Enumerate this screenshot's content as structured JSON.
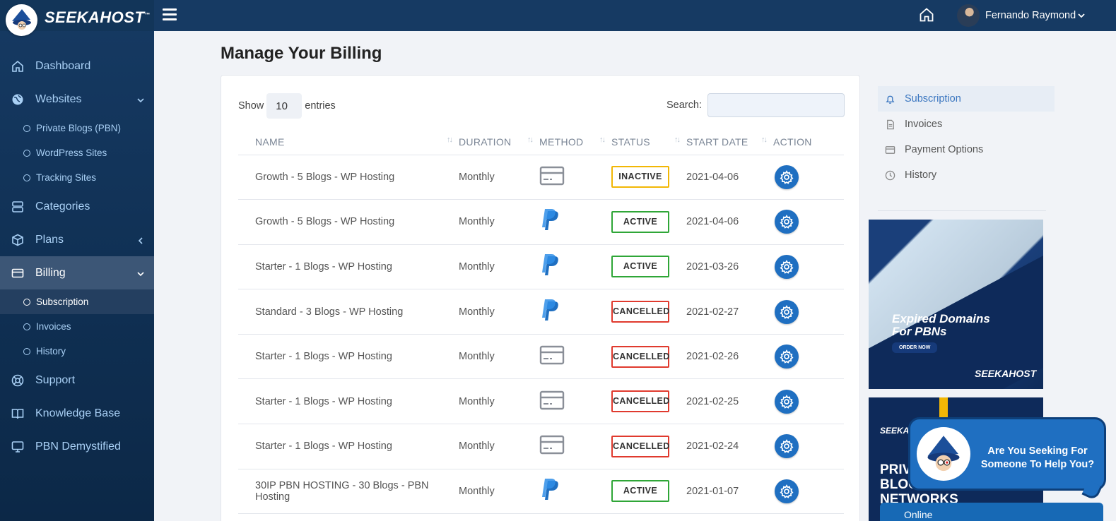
{
  "brand": {
    "name": "SEEKAHOST",
    "tm": "™"
  },
  "sidebar": {
    "items": [
      {
        "label": "Dashboard",
        "icon": "home-icon"
      },
      {
        "label": "Websites",
        "icon": "globe-icon",
        "expanded": true,
        "sub": [
          {
            "label": "Private Blogs (PBN)"
          },
          {
            "label": "WordPress Sites"
          },
          {
            "label": "Tracking Sites"
          }
        ]
      },
      {
        "label": "Categories",
        "icon": "server-icon"
      },
      {
        "label": "Plans",
        "icon": "package-icon"
      },
      {
        "label": "Billing",
        "icon": "credit-card-icon",
        "expanded": true,
        "sub": [
          {
            "label": "Subscription",
            "active": true
          },
          {
            "label": "Invoices"
          },
          {
            "label": "History"
          }
        ]
      },
      {
        "label": "Support",
        "icon": "lifebuoy-icon"
      },
      {
        "label": "Knowledge Base",
        "icon": "book-icon"
      },
      {
        "label": "PBN Demystified",
        "icon": "monitor-icon"
      }
    ]
  },
  "header": {
    "user_name": "Fernando Raymond"
  },
  "page": {
    "title": "Manage Your Billing"
  },
  "table_controls": {
    "show_label": "Show",
    "entries_value": "10",
    "entries_label": "entries",
    "search_label": "Search:",
    "search_value": ""
  },
  "table": {
    "columns": [
      "NAME",
      "DURATION",
      "METHOD",
      "STATUS",
      "START DATE",
      "ACTION"
    ],
    "rows": [
      {
        "name": "Growth - 5 Blogs - WP Hosting",
        "duration": "Monthly",
        "method": "card",
        "status": "INACTIVE",
        "start": "2021-04-06"
      },
      {
        "name": "Growth - 5 Blogs - WP Hosting",
        "duration": "Monthly",
        "method": "paypal",
        "status": "ACTIVE",
        "start": "2021-04-06"
      },
      {
        "name": "Starter - 1 Blogs - WP Hosting",
        "duration": "Monthly",
        "method": "paypal",
        "status": "ACTIVE",
        "start": "2021-03-26"
      },
      {
        "name": "Standard - 3 Blogs - WP Hosting",
        "duration": "Monthly",
        "method": "paypal",
        "status": "CANCELLED",
        "start": "2021-02-27"
      },
      {
        "name": "Starter - 1 Blogs - WP Hosting",
        "duration": "Monthly",
        "method": "card",
        "status": "CANCELLED",
        "start": "2021-02-26"
      },
      {
        "name": "Starter - 1 Blogs - WP Hosting",
        "duration": "Monthly",
        "method": "card",
        "status": "CANCELLED",
        "start": "2021-02-25"
      },
      {
        "name": "Starter - 1 Blogs - WP Hosting",
        "duration": "Monthly",
        "method": "card",
        "status": "CANCELLED",
        "start": "2021-02-24"
      },
      {
        "name": "30IP PBN HOSTING - 30 Blogs - PBN Hosting",
        "duration": "Monthly",
        "method": "paypal",
        "status": "ACTIVE",
        "start": "2021-01-07"
      }
    ]
  },
  "right_nav": [
    {
      "label": "Subscription",
      "icon": "bell-icon",
      "active": true
    },
    {
      "label": "Invoices",
      "icon": "document-icon"
    },
    {
      "label": "Payment Options",
      "icon": "credit-card-icon"
    },
    {
      "label": "History",
      "icon": "clock-icon"
    }
  ],
  "ads": {
    "ad1": {
      "headline_1": "Expired Domains",
      "headline_2": "For PBNs",
      "cta": "ORDER NOW",
      "brand": "SEEKAHOST"
    },
    "ad2": {
      "brand": "SEEKAHOST",
      "line1": "PRIV",
      "line2": "BLOG",
      "line3": "NETWORKS"
    }
  },
  "chat": {
    "line1": "Are You Seeking For",
    "line2": "Someone To Help You?",
    "status": "Online"
  },
  "colors": {
    "sidebar": "#163a63",
    "accent": "#1f6fc1",
    "active": "#2fa637",
    "inactive": "#f2b705",
    "cancelled": "#e03a2e"
  }
}
